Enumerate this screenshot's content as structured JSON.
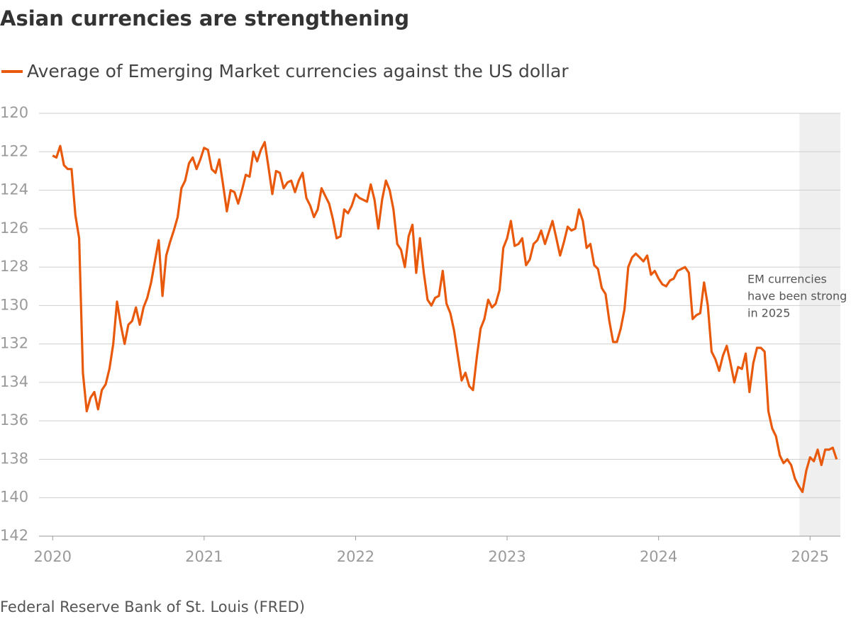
{
  "chart_data": {
    "type": "line",
    "title": "Asian currencies are strengthening",
    "source": "Federal Reserve Bank of St. Louis (FRED)",
    "annotation": {
      "lines": [
        "EM currencies",
        "have been strong",
        "in 2025"
      ],
      "shade": [
        2024.93,
        2025.2
      ]
    },
    "xlim": [
      2019.91,
      2025.2
    ],
    "xticks": [
      2020,
      2021,
      2022,
      2023,
      2024,
      2025
    ],
    "ylim": [
      142,
      120
    ],
    "yticks": [
      120,
      122,
      124,
      126,
      128,
      130,
      132,
      134,
      136,
      138,
      140,
      142
    ],
    "grid": true,
    "x": [
      2020,
      2020.025,
      2020.05,
      2020.075,
      2020.1,
      2020.125,
      2020.15,
      2020.175,
      2020.2,
      2020.225,
      2020.25,
      2020.275,
      2020.3,
      2020.325,
      2020.35,
      2020.375,
      2020.4,
      2020.425,
      2020.45,
      2020.475,
      2020.5,
      2020.525,
      2020.55,
      2020.575,
      2020.6,
      2020.625,
      2020.65,
      2020.675,
      2020.7,
      2020.725,
      2020.75,
      2020.775,
      2020.8,
      2020.825,
      2020.85,
      2020.875,
      2020.9,
      2020.925,
      2020.95,
      2020.975,
      2021,
      2021.025,
      2021.05,
      2021.075,
      2021.1,
      2021.125,
      2021.15,
      2021.175,
      2021.2,
      2021.225,
      2021.25,
      2021.275,
      2021.3,
      2021.325,
      2021.35,
      2021.375,
      2021.4,
      2021.425,
      2021.45,
      2021.475,
      2021.5,
      2021.525,
      2021.55,
      2021.575,
      2021.6,
      2021.625,
      2021.65,
      2021.675,
      2021.7,
      2021.725,
      2021.75,
      2021.775,
      2021.8,
      2021.825,
      2021.85,
      2021.875,
      2021.9,
      2021.925,
      2021.95,
      2021.975,
      2022,
      2022.025,
      2022.05,
      2022.075,
      2022.1,
      2022.125,
      2022.15,
      2022.175,
      2022.2,
      2022.225,
      2022.25,
      2022.275,
      2022.3,
      2022.325,
      2022.35,
      2022.375,
      2022.4,
      2022.425,
      2022.45,
      2022.475,
      2022.5,
      2022.525,
      2022.55,
      2022.575,
      2022.6,
      2022.625,
      2022.65,
      2022.675,
      2022.7,
      2022.725,
      2022.75,
      2022.775,
      2022.8,
      2022.825,
      2022.85,
      2022.875,
      2022.9,
      2022.925,
      2022.95,
      2022.975,
      2023,
      2023.025,
      2023.05,
      2023.075,
      2023.1,
      2023.125,
      2023.15,
      2023.175,
      2023.2,
      2023.225,
      2023.25,
      2023.275,
      2023.3,
      2023.325,
      2023.35,
      2023.375,
      2023.4,
      2023.425,
      2023.45,
      2023.475,
      2023.5,
      2023.525,
      2023.55,
      2023.575,
      2023.6,
      2023.625,
      2023.65,
      2023.675,
      2023.7,
      2023.725,
      2023.75,
      2023.775,
      2023.8,
      2023.825,
      2023.85,
      2023.875,
      2023.9,
      2023.925,
      2023.95,
      2023.975,
      2024,
      2024.025,
      2024.05,
      2024.075,
      2024.1,
      2024.125,
      2024.15,
      2024.175,
      2024.2,
      2024.225,
      2024.25,
      2024.275,
      2024.3,
      2024.325,
      2024.35,
      2024.375,
      2024.4,
      2024.425,
      2024.45,
      2024.475,
      2024.5,
      2024.525,
      2024.55,
      2024.575,
      2024.6,
      2024.625,
      2024.65,
      2024.675,
      2024.7,
      2024.725,
      2024.75,
      2024.775,
      2024.8,
      2024.825,
      2024.85,
      2024.875,
      2024.9,
      2024.925,
      2024.95,
      2024.975,
      2025,
      2025.025,
      2025.05,
      2025.075,
      2025.1,
      2025.125,
      2025.15,
      2025.175
    ],
    "series": [
      {
        "name": "Average of Emerging Market currencies against the US dollar",
        "color": "#e8590c",
        "values": [
          122.2,
          122.3,
          121.7,
          122.7,
          122.9,
          122.9,
          125.3,
          126.5,
          133.5,
          135.5,
          134.8,
          134.5,
          135.4,
          134.4,
          134.1,
          133.3,
          132.0,
          129.8,
          131.0,
          132.0,
          131.0,
          130.8,
          130.1,
          131.0,
          130.1,
          129.6,
          128.8,
          127.7,
          126.6,
          129.5,
          127.4,
          126.7,
          126.1,
          125.4,
          123.9,
          123.5,
          122.6,
          122.3,
          122.9,
          122.4,
          121.8,
          121.9,
          122.9,
          123.1,
          122.4,
          123.7,
          125.1,
          124.0,
          124.1,
          124.7,
          124.0,
          123.2,
          123.3,
          122.0,
          122.5,
          121.9,
          121.5,
          122.8,
          124.2,
          123.0,
          123.1,
          123.9,
          123.6,
          123.5,
          124.1,
          123.5,
          123.1,
          124.4,
          124.8,
          125.4,
          125.0,
          123.9,
          124.3,
          124.7,
          125.5,
          126.5,
          126.4,
          125.0,
          125.2,
          124.8,
          124.2,
          124.4,
          124.5,
          124.6,
          123.7,
          124.5,
          126.0,
          124.5,
          123.5,
          124.0,
          125.0,
          126.8,
          127.1,
          128.0,
          126.4,
          125.8,
          128.3,
          126.5,
          128.3,
          129.7,
          130.0,
          129.6,
          129.5,
          128.2,
          129.9,
          130.4,
          131.3,
          132.6,
          133.9,
          133.5,
          134.2,
          134.4,
          132.7,
          131.2,
          130.7,
          129.7,
          130.1,
          129.9,
          129.2,
          127.0,
          126.5,
          125.6,
          126.9,
          126.8,
          126.5,
          127.9,
          127.6,
          126.8,
          126.6,
          126.1,
          126.8,
          126.2,
          125.6,
          126.5,
          127.4,
          126.7,
          125.9,
          126.1,
          126.0,
          125.0,
          125.6,
          127.0,
          126.8,
          127.9,
          128.1,
          129.1,
          129.4,
          130.8,
          131.9,
          131.9,
          131.2,
          130.2,
          128.0,
          127.5,
          127.3,
          127.5,
          127.7,
          127.4,
          128.4,
          128.2,
          128.6,
          128.9,
          129.0,
          128.7,
          128.6,
          128.2,
          128.1,
          128.0,
          128.3,
          130.7,
          130.5,
          130.4,
          128.8,
          130.0,
          132.4,
          132.8,
          133.4,
          132.6,
          132.1,
          133.0,
          134.0,
          133.2,
          133.3,
          132.5,
          134.5,
          133.0,
          132.2,
          132.2,
          132.4,
          135.5,
          136.4,
          136.8,
          137.8,
          138.2,
          138.0,
          138.3,
          139.0,
          139.4,
          139.7,
          138.6,
          137.9,
          138.1,
          137.5,
          138.3,
          137.5,
          137.5,
          137.4,
          138.0
        ]
      }
    ]
  }
}
